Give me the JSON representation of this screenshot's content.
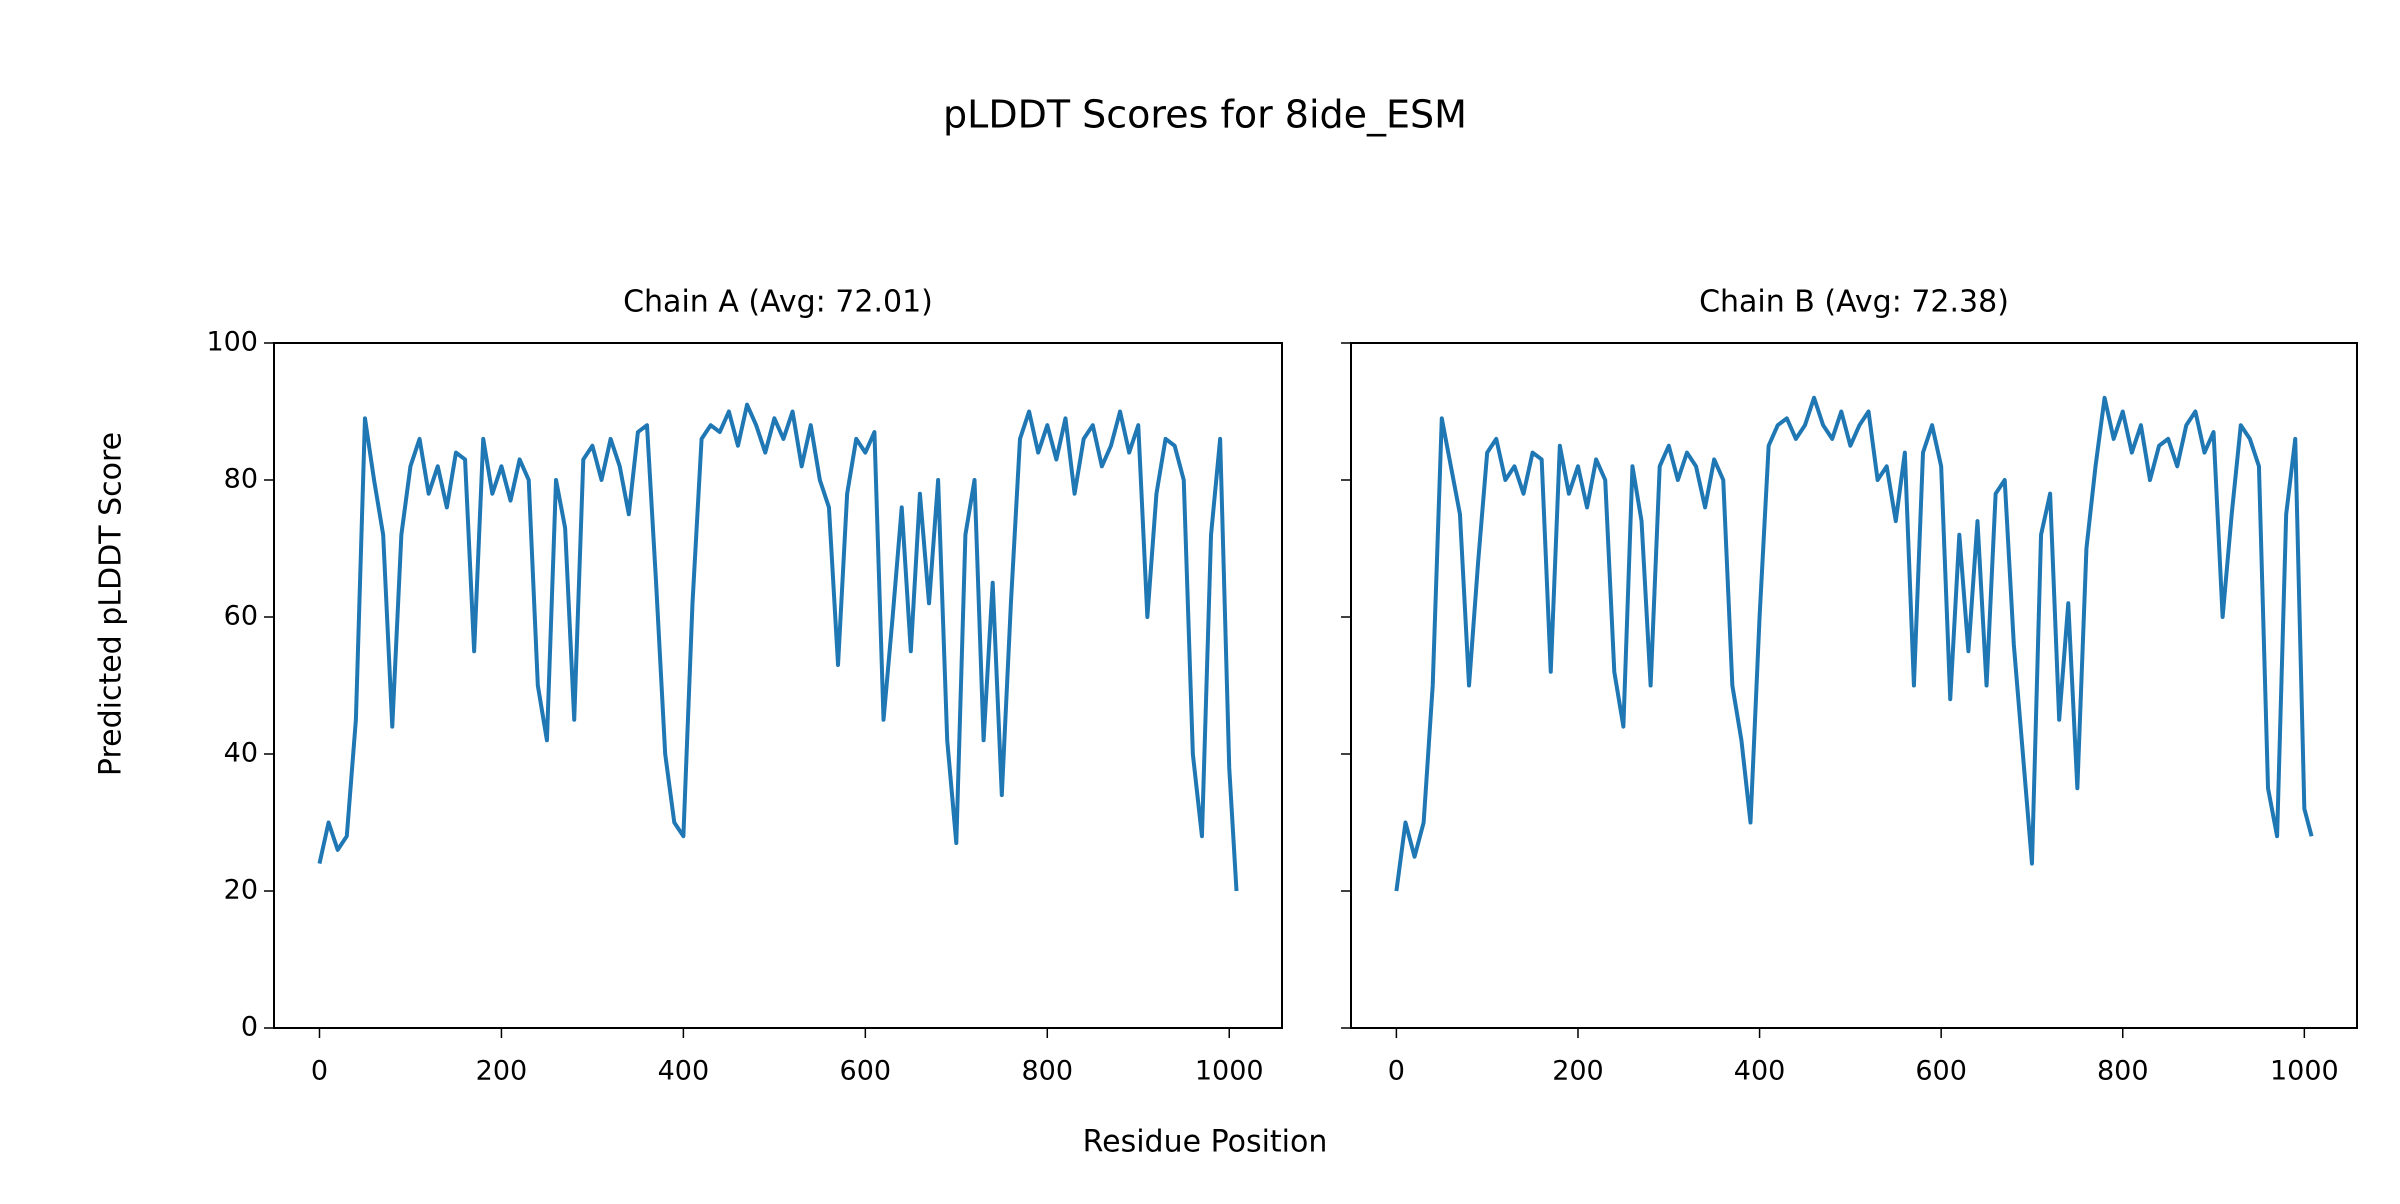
{
  "figure": {
    "title": "pLDDT Scores for 8ide_ESM",
    "xlabel": "Residue Position",
    "ylabel": "Predicted pLDDT Score"
  },
  "chart_data": [
    {
      "type": "line",
      "title": "Chain A (Avg: 72.01)",
      "color": "#1f77b4",
      "x": [
        0,
        10,
        20,
        30,
        40,
        50,
        60,
        70,
        80,
        90,
        100,
        110,
        120,
        130,
        140,
        150,
        160,
        170,
        180,
        190,
        200,
        210,
        220,
        230,
        240,
        250,
        260,
        270,
        280,
        290,
        300,
        310,
        320,
        330,
        340,
        350,
        360,
        370,
        380,
        390,
        400,
        410,
        420,
        430,
        440,
        450,
        460,
        470,
        480,
        490,
        500,
        510,
        520,
        530,
        540,
        550,
        560,
        570,
        580,
        590,
        600,
        610,
        620,
        630,
        640,
        650,
        660,
        670,
        680,
        690,
        700,
        710,
        720,
        730,
        740,
        750,
        760,
        770,
        780,
        790,
        800,
        810,
        820,
        830,
        840,
        850,
        860,
        870,
        880,
        890,
        900,
        910,
        920,
        930,
        940,
        950,
        960,
        970,
        980,
        990,
        1000,
        1008
      ],
      "values": [
        24,
        30,
        26,
        28,
        45,
        89,
        80,
        72,
        44,
        72,
        82,
        86,
        78,
        82,
        76,
        84,
        83,
        55,
        86,
        78,
        82,
        77,
        83,
        80,
        50,
        42,
        80,
        73,
        45,
        83,
        85,
        80,
        86,
        82,
        75,
        87,
        88,
        65,
        40,
        30,
        28,
        62,
        86,
        88,
        87,
        90,
        85,
        91,
        88,
        84,
        89,
        86,
        90,
        82,
        88,
        80,
        76,
        53,
        78,
        86,
        84,
        87,
        45,
        60,
        76,
        55,
        78,
        62,
        80,
        42,
        27,
        72,
        80,
        42,
        65,
        34,
        62,
        86,
        90,
        84,
        88,
        83,
        89,
        78,
        86,
        88,
        82,
        85,
        90,
        84,
        88,
        60,
        78,
        86,
        85,
        80,
        40,
        28,
        72,
        86,
        38,
        20
      ],
      "xlim": [
        -50,
        1058
      ],
      "ylim": [
        0,
        100
      ],
      "xticks": [
        0,
        200,
        400,
        600,
        800,
        1000
      ],
      "yticks": [
        0,
        20,
        40,
        60,
        80,
        100
      ],
      "show_ytick_labels": true
    },
    {
      "type": "line",
      "title": "Chain B (Avg: 72.38)",
      "color": "#1f77b4",
      "x": [
        0,
        10,
        20,
        30,
        40,
        50,
        60,
        70,
        80,
        90,
        100,
        110,
        120,
        130,
        140,
        150,
        160,
        170,
        180,
        190,
        200,
        210,
        220,
        230,
        240,
        250,
        260,
        270,
        280,
        290,
        300,
        310,
        320,
        330,
        340,
        350,
        360,
        370,
        380,
        390,
        400,
        410,
        420,
        430,
        440,
        450,
        460,
        470,
        480,
        490,
        500,
        510,
        520,
        530,
        540,
        550,
        560,
        570,
        580,
        590,
        600,
        610,
        620,
        630,
        640,
        650,
        660,
        670,
        680,
        690,
        700,
        710,
        720,
        730,
        740,
        750,
        760,
        770,
        780,
        790,
        800,
        810,
        820,
        830,
        840,
        850,
        860,
        870,
        880,
        890,
        900,
        910,
        920,
        930,
        940,
        950,
        960,
        970,
        980,
        990,
        1000,
        1008
      ],
      "values": [
        20,
        30,
        25,
        30,
        50,
        89,
        82,
        75,
        50,
        68,
        84,
        86,
        80,
        82,
        78,
        84,
        83,
        52,
        85,
        78,
        82,
        76,
        83,
        80,
        52,
        44,
        82,
        74,
        50,
        82,
        85,
        80,
        84,
        82,
        76,
        83,
        80,
        50,
        42,
        30,
        60,
        85,
        88,
        89,
        86,
        88,
        92,
        88,
        86,
        90,
        85,
        88,
        90,
        80,
        82,
        74,
        84,
        50,
        84,
        88,
        82,
        48,
        72,
        55,
        74,
        50,
        78,
        80,
        56,
        40,
        24,
        72,
        78,
        45,
        62,
        35,
        70,
        82,
        92,
        86,
        90,
        84,
        88,
        80,
        85,
        86,
        82,
        88,
        90,
        84,
        87,
        60,
        75,
        88,
        86,
        82,
        35,
        28,
        75,
        86,
        32,
        28
      ],
      "xlim": [
        -50,
        1058
      ],
      "ylim": [
        0,
        100
      ],
      "xticks": [
        0,
        200,
        400,
        600,
        800,
        1000
      ],
      "yticks": [
        0,
        20,
        40,
        60,
        80,
        100
      ],
      "show_ytick_labels": false
    }
  ]
}
